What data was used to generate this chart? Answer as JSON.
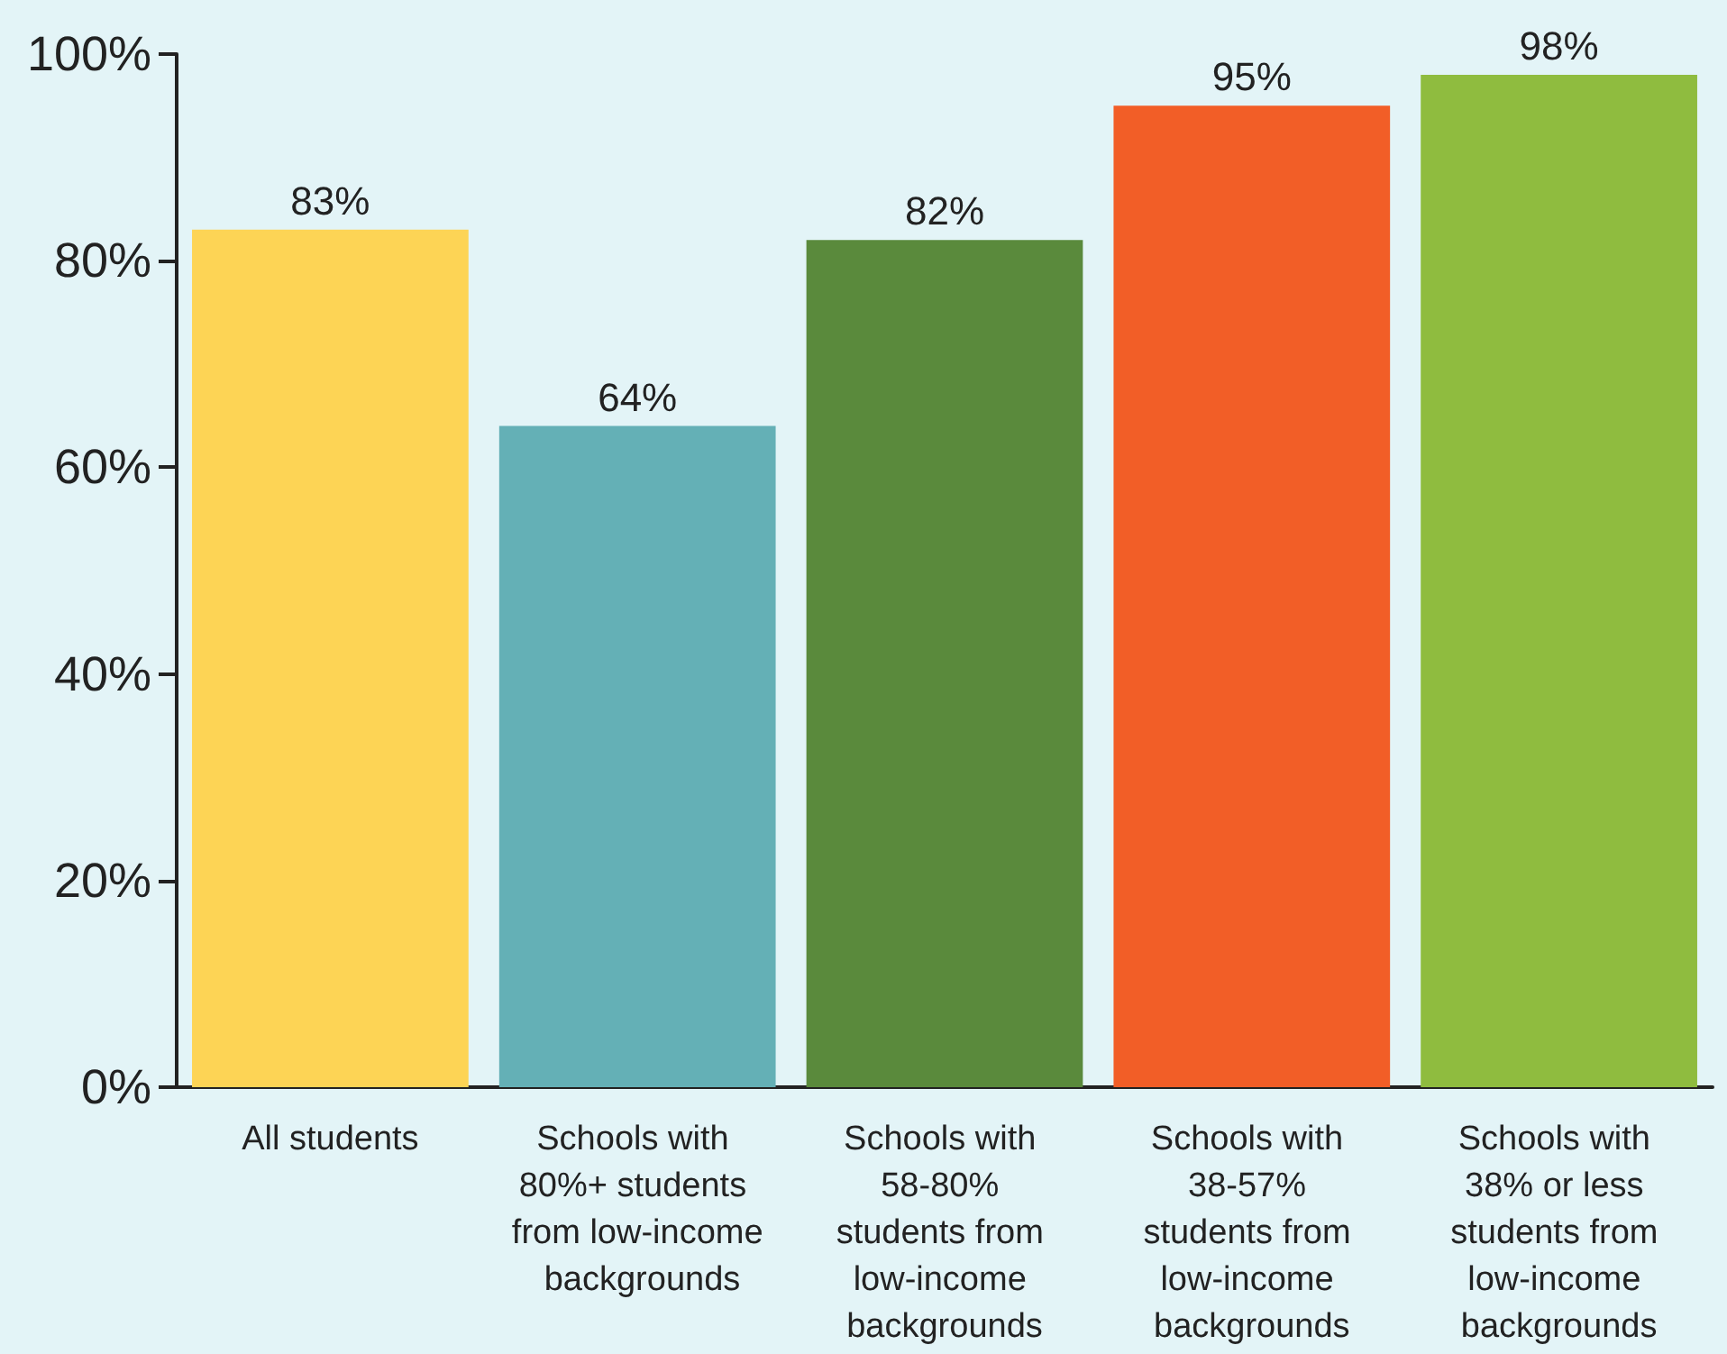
{
  "chart_data": {
    "type": "bar",
    "categories": [
      "All students",
      "Schools with 80%+ students from low-income backgrounds",
      "Schools with 58-80% students from low-income backgrounds",
      "Schools with 38-57% students from low-income backgrounds",
      "Schools with 38% or less students from low-income backgrounds"
    ],
    "values": [
      83,
      64,
      82,
      95,
      98
    ],
    "colors": [
      "#fdd455",
      "#64b0b6",
      "#5a8a3c",
      "#f25e27",
      "#8fbc3f"
    ],
    "value_labels": [
      "83%",
      "64%",
      "82%",
      "95%",
      "98%"
    ],
    "ylim": [
      0,
      100
    ],
    "yticks": [
      {
        "value": 0,
        "label": "0%"
      },
      {
        "value": 20,
        "label": "20%"
      },
      {
        "value": 40,
        "label": "40%"
      },
      {
        "value": 60,
        "label": "60%"
      },
      {
        "value": 80,
        "label": "80%"
      },
      {
        "value": 100,
        "label": "100%"
      }
    ],
    "grid": false
  }
}
